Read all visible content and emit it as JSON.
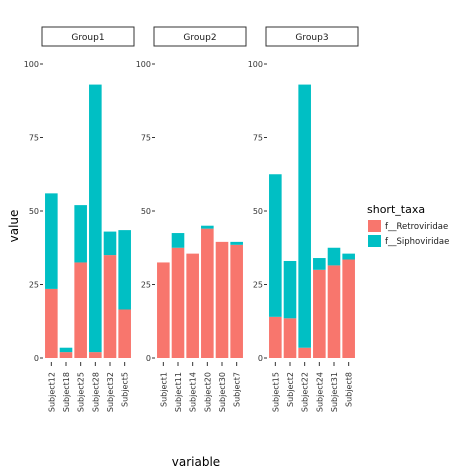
{
  "chart_data": {
    "type": "bar",
    "stacked": true,
    "facets": [
      {
        "strip": "Group1",
        "categories": [
          "Subject12",
          "Subject18",
          "Subject25",
          "Subject28",
          "Subject32",
          "Subject5"
        ],
        "series": [
          {
            "name": "f__Retroviridae",
            "values": [
              23.5,
              2,
              32.5,
              2,
              35,
              16.5
            ]
          },
          {
            "name": "f__Siphoviridae",
            "values": [
              32.5,
              1.5,
              19.5,
              91,
              8,
              27
            ]
          }
        ]
      },
      {
        "strip": "Group2",
        "categories": [
          "Subject1",
          "Subject11",
          "Subject14",
          "Subject20",
          "Subject30",
          "Subject7"
        ],
        "series": [
          {
            "name": "f__Retroviridae",
            "values": [
              32.5,
              37.5,
              35.5,
              44,
              39.5,
              38.5
            ]
          },
          {
            "name": "f__Siphoviridae",
            "values": [
              0,
              5,
              0,
              1,
              0,
              1
            ]
          }
        ]
      },
      {
        "strip": "Group3",
        "categories": [
          "Subject15",
          "Subject2",
          "Subject22",
          "Subject24",
          "Subject31",
          "Subject8"
        ],
        "series": [
          {
            "name": "f__Retroviridae",
            "values": [
              14,
              13.5,
              3.5,
              30,
              31.5,
              33.5
            ]
          },
          {
            "name": "f__Siphoviridae",
            "values": [
              48.5,
              19.5,
              89.5,
              4,
              6,
              2
            ]
          }
        ]
      }
    ],
    "yticks": [
      "0",
      "25",
      "50",
      "75",
      "100"
    ],
    "ylim": [
      0,
      100
    ],
    "xlabel": "variable",
    "ylabel": "value",
    "legend_title": "short_taxa",
    "legend_position": "right",
    "grid": false,
    "colors": {
      "f__Retroviridae": "#F8766D",
      "f__Siphoviridae": "#00BFC4"
    }
  }
}
